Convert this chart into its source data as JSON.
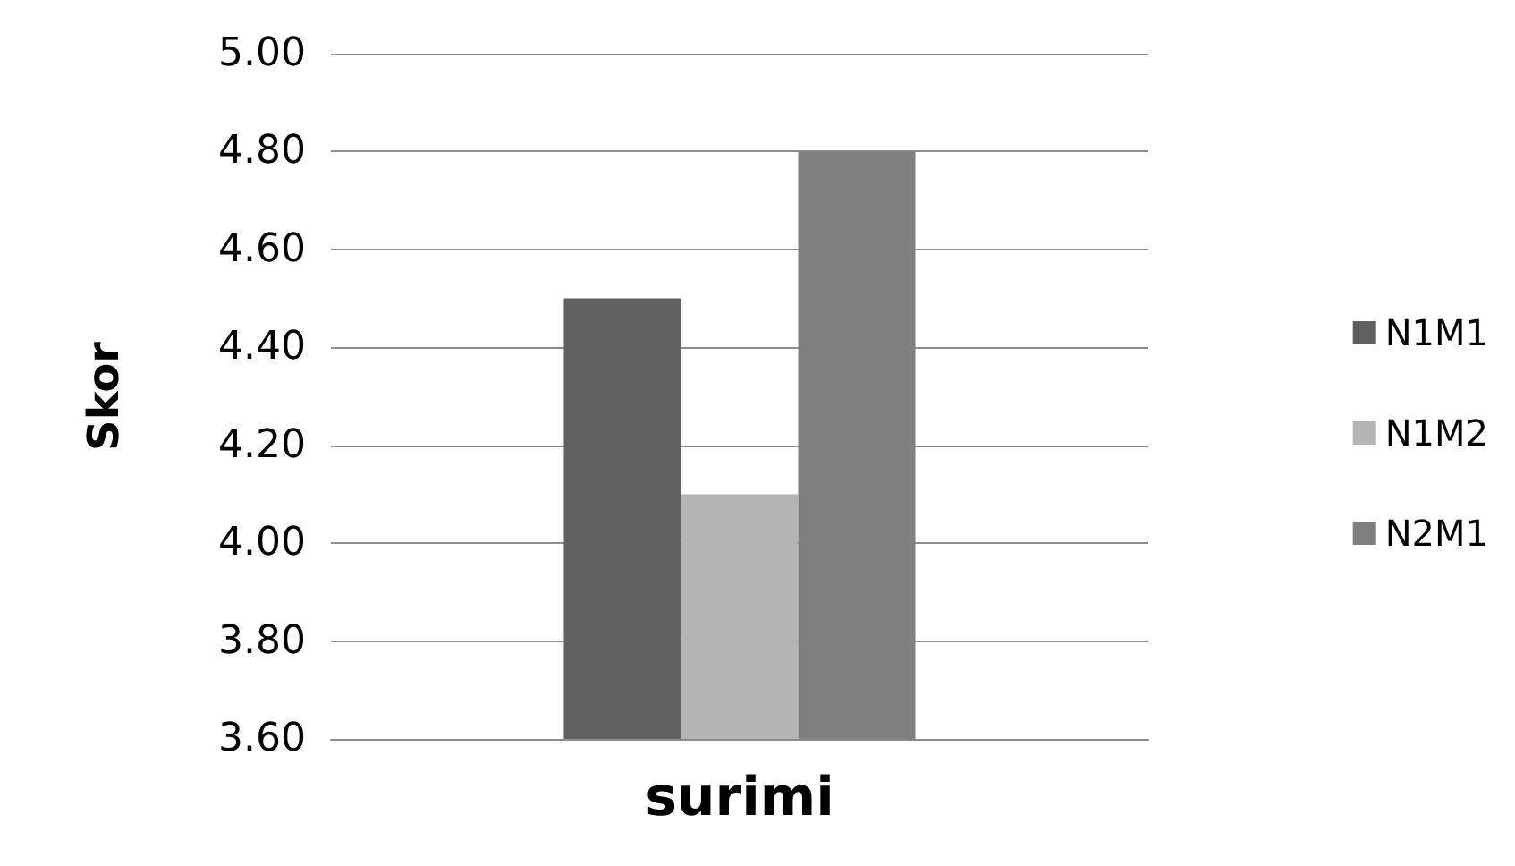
{
  "chart_data": {
    "type": "bar",
    "ylabel": "Skor",
    "categories": [
      "surimi"
    ],
    "series": [
      {
        "name": "N1M1",
        "color": "#606060",
        "values": [
          4.5
        ]
      },
      {
        "name": "N1M2",
        "color": "#b4b4b4",
        "values": [
          4.1
        ]
      },
      {
        "name": "N2M1",
        "color": "#7f7f7f",
        "values": [
          4.8
        ]
      }
    ],
    "ylim": [
      3.6,
      5.0
    ],
    "yticks": [
      {
        "value": 3.6,
        "label": "3.60"
      },
      {
        "value": 3.8,
        "label": "3.80"
      },
      {
        "value": 4.0,
        "label": "4.00"
      },
      {
        "value": 4.2,
        "label": "4.20"
      },
      {
        "value": 4.4,
        "label": "4.40"
      },
      {
        "value": 4.6,
        "label": "4.60"
      },
      {
        "value": 4.8,
        "label": "4.80"
      },
      {
        "value": 5.0,
        "label": "5.00"
      }
    ],
    "grid": "y",
    "legend": "right"
  }
}
